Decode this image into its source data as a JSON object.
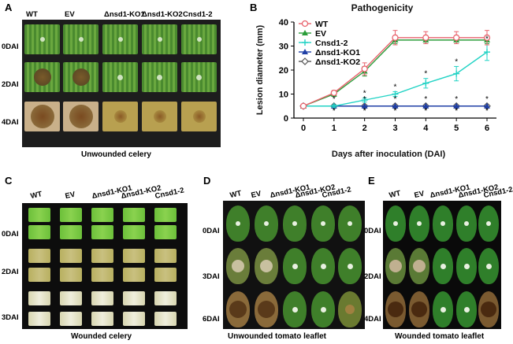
{
  "panels": {
    "A": {
      "label": "A",
      "columns": [
        "WT",
        "EV",
        "Δnsd1-KO1",
        "Δnsd1-KO2",
        "Cnsd1-2"
      ],
      "rows": [
        "0DAI",
        "2DAI",
        "4DAI"
      ],
      "caption": "Unwounded celery"
    },
    "B": {
      "label": "B",
      "title": "Pathogenicity"
    },
    "C": {
      "label": "C",
      "columns": [
        "WT",
        "EV",
        "Δnsd1-KO1",
        "Δnsd1-KO2",
        "Cnsd1-2"
      ],
      "rows": [
        "0DAI",
        "2DAI",
        "3DAI"
      ],
      "caption": "Wounded celery"
    },
    "D": {
      "label": "D",
      "columns": [
        "WT",
        "EV",
        "Δnsd1-KO1",
        "Δnsd1-KO2",
        "Cnsd1-2"
      ],
      "rows": [
        "0DAI",
        "3DAI",
        "6DAI"
      ],
      "caption": "Unwounded tomato leaflet"
    },
    "E": {
      "label": "E",
      "columns": [
        "WT",
        "EV",
        "Δnsd1-KO1",
        "Δnsd1-KO2",
        "Cnsd1-2"
      ],
      "rows": [
        "0DAI",
        "2DAI",
        "4DAI"
      ],
      "caption": "Wounded tomato leaflet"
    }
  },
  "chart_data": {
    "type": "line",
    "title": "Pathogenicity",
    "xlabel": "Days after inoculation (DAI)",
    "ylabel": "Lesion diameter (mm)",
    "x": [
      0,
      1,
      2,
      3,
      4,
      5,
      6
    ],
    "xlim": [
      0,
      6
    ],
    "ylim": [
      0,
      40
    ],
    "yticks": [
      0,
      10,
      20,
      30,
      40
    ],
    "series": [
      {
        "name": "WT",
        "color": "#e8636d",
        "marker": "circle-open",
        "values": [
          5,
          10.5,
          20.5,
          33.5,
          33.5,
          33.5,
          33.5
        ],
        "errors": [
          0,
          1,
          2.5,
          3,
          2.5,
          2.5,
          3
        ]
      },
      {
        "name": "EV",
        "color": "#2a9d3a",
        "marker": "triangle",
        "values": [
          5,
          10,
          19.5,
          32.5,
          32.5,
          32.5,
          32.5
        ],
        "errors": [
          0,
          1,
          2,
          1.5,
          1.5,
          1.5,
          1.5
        ]
      },
      {
        "name": "Cnsd1-2",
        "color": "#22d3c5",
        "marker": "plus",
        "values": [
          5,
          5,
          7.5,
          10,
          14.5,
          18.5,
          27.5
        ],
        "errors": [
          0,
          0.5,
          0.8,
          1,
          2,
          3,
          3.5
        ]
      },
      {
        "name": "Δnsd1-KO1",
        "color": "#1f3fa6",
        "marker": "triangle",
        "values": [
          5,
          5,
          5,
          5,
          5,
          5,
          5
        ],
        "errors": [
          0,
          0,
          0,
          0,
          0,
          0,
          0
        ]
      },
      {
        "name": "Δnsd1-KO2",
        "color": "#555555",
        "marker": "diamond-open",
        "values": [
          5,
          5,
          5,
          5,
          5,
          5,
          5
        ],
        "errors": [
          0,
          0,
          0,
          0,
          0,
          0,
          0
        ]
      }
    ],
    "significance": [
      {
        "x": 1,
        "marks": [
          "*",
          "*"
        ]
      },
      {
        "x": 2,
        "marks": [
          "*",
          "*",
          "*"
        ]
      },
      {
        "x": 3,
        "marks": [
          "*",
          "*",
          "*"
        ]
      },
      {
        "x": 4,
        "marks": [
          "*",
          "*",
          "*"
        ]
      },
      {
        "x": 5,
        "marks": [
          "*",
          "*",
          "*"
        ]
      },
      {
        "x": 6,
        "marks": [
          "*",
          "*",
          "*"
        ]
      }
    ],
    "legend": "top-left"
  }
}
